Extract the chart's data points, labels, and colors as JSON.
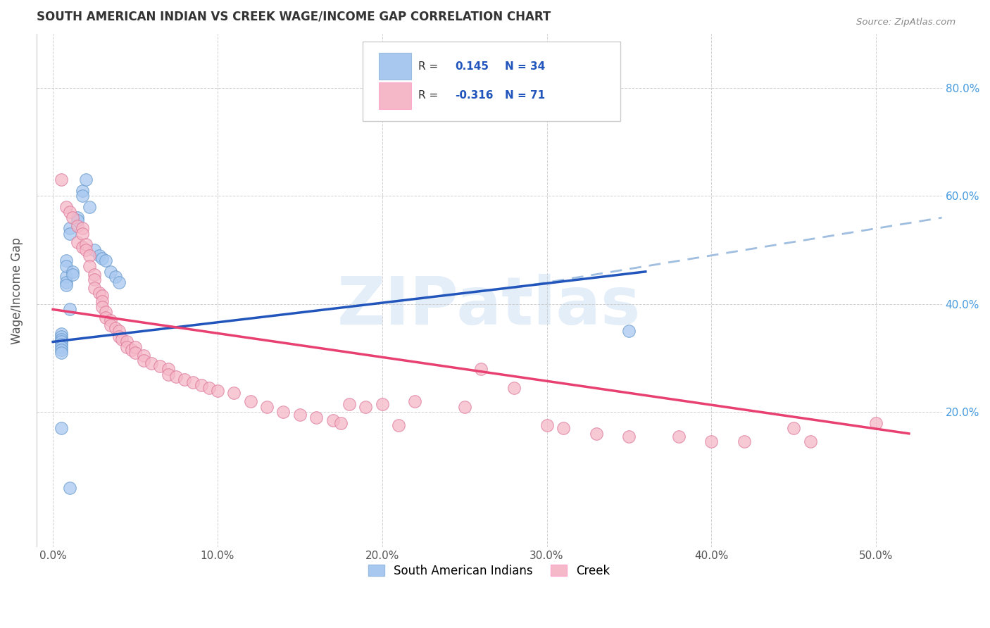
{
  "title": "SOUTH AMERICAN INDIAN VS CREEK WAGE/INCOME GAP CORRELATION CHART",
  "source": "Source: ZipAtlas.com",
  "xlabel_ticks": [
    "0.0%",
    "10.0%",
    "20.0%",
    "30.0%",
    "40.0%",
    "50.0%"
  ],
  "xlabel_vals": [
    0.0,
    0.1,
    0.2,
    0.3,
    0.4,
    0.5
  ],
  "ylabel": "Wage/Income Gap",
  "ylabel_right_ticks": [
    "20.0%",
    "40.0%",
    "60.0%",
    "80.0%"
  ],
  "ylabel_right_vals": [
    0.2,
    0.4,
    0.6,
    0.8
  ],
  "xlim": [
    -0.01,
    0.54
  ],
  "ylim": [
    -0.05,
    0.9
  ],
  "blue_R": "0.145",
  "blue_N": "34",
  "pink_R": "-0.316",
  "pink_N": "71",
  "blue_color": "#A8C8F0",
  "pink_color": "#F5B8C8",
  "blue_line_color": "#2255BB",
  "pink_line_color": "#E84070",
  "dashed_line_color": "#A0BEE0",
  "watermark": "ZIPatlas",
  "legend_label_blue": "South American Indians",
  "legend_label_pink": "Creek",
  "blue_scatter_x": [
    0.005,
    0.005,
    0.005,
    0.005,
    0.005,
    0.005,
    0.005,
    0.005,
    0.008,
    0.008,
    0.008,
    0.008,
    0.008,
    0.01,
    0.01,
    0.01,
    0.012,
    0.012,
    0.015,
    0.015,
    0.018,
    0.018,
    0.02,
    0.022,
    0.025,
    0.028,
    0.03,
    0.032,
    0.035,
    0.038,
    0.04,
    0.005,
    0.01,
    0.35
  ],
  "blue_scatter_y": [
    0.345,
    0.34,
    0.335,
    0.33,
    0.325,
    0.32,
    0.315,
    0.31,
    0.45,
    0.44,
    0.435,
    0.48,
    0.47,
    0.54,
    0.53,
    0.39,
    0.46,
    0.455,
    0.56,
    0.555,
    0.61,
    0.6,
    0.63,
    0.58,
    0.5,
    0.49,
    0.485,
    0.48,
    0.46,
    0.45,
    0.44,
    0.17,
    0.06,
    0.35
  ],
  "pink_scatter_x": [
    0.005,
    0.008,
    0.01,
    0.012,
    0.015,
    0.015,
    0.018,
    0.018,
    0.018,
    0.02,
    0.02,
    0.022,
    0.022,
    0.025,
    0.025,
    0.025,
    0.028,
    0.03,
    0.03,
    0.03,
    0.032,
    0.032,
    0.035,
    0.035,
    0.038,
    0.04,
    0.04,
    0.042,
    0.045,
    0.045,
    0.048,
    0.05,
    0.05,
    0.055,
    0.055,
    0.06,
    0.065,
    0.07,
    0.07,
    0.075,
    0.08,
    0.085,
    0.09,
    0.095,
    0.1,
    0.11,
    0.12,
    0.13,
    0.14,
    0.15,
    0.16,
    0.17,
    0.175,
    0.18,
    0.19,
    0.2,
    0.21,
    0.22,
    0.25,
    0.26,
    0.28,
    0.3,
    0.31,
    0.33,
    0.35,
    0.38,
    0.4,
    0.42,
    0.45,
    0.46,
    0.5
  ],
  "pink_scatter_y": [
    0.63,
    0.58,
    0.57,
    0.56,
    0.545,
    0.515,
    0.54,
    0.53,
    0.505,
    0.51,
    0.5,
    0.49,
    0.47,
    0.455,
    0.445,
    0.43,
    0.42,
    0.415,
    0.405,
    0.395,
    0.385,
    0.375,
    0.37,
    0.36,
    0.355,
    0.35,
    0.34,
    0.335,
    0.33,
    0.32,
    0.315,
    0.32,
    0.31,
    0.305,
    0.295,
    0.29,
    0.285,
    0.28,
    0.27,
    0.265,
    0.26,
    0.255,
    0.25,
    0.245,
    0.24,
    0.235,
    0.22,
    0.21,
    0.2,
    0.195,
    0.19,
    0.185,
    0.18,
    0.215,
    0.21,
    0.215,
    0.175,
    0.22,
    0.21,
    0.28,
    0.245,
    0.175,
    0.17,
    0.16,
    0.155,
    0.155,
    0.145,
    0.145,
    0.17,
    0.145,
    0.18
  ],
  "background_color": "#FFFFFF",
  "grid_color": "#CCCCCC",
  "blue_line_x": [
    0.0,
    0.36
  ],
  "blue_line_y": [
    0.33,
    0.46
  ],
  "dashed_line_x": [
    0.28,
    0.54
  ],
  "dashed_line_y": [
    0.43,
    0.56
  ],
  "pink_line_x": [
    0.0,
    0.52
  ],
  "pink_line_y": [
    0.39,
    0.16
  ]
}
